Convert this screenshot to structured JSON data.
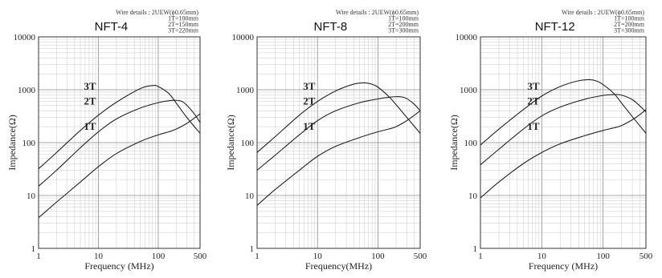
{
  "chart_data": [
    {
      "type": "line",
      "title": "NFT-4",
      "wire_details": [
        "Wire details : 2UEW(ϕ0.65mm)",
        "1T=100mm",
        "2T=150mm",
        "3T=220mm"
      ],
      "xlabel": "Frequency (MHz)",
      "ylabel": "Impedance(Ω)",
      "xscale": "log",
      "yscale": "log",
      "xlim": [
        1,
        500
      ],
      "ylim": [
        1,
        10000
      ],
      "xticks": [
        "1",
        "10",
        "100",
        "500"
      ],
      "yticks": [
        "1",
        "10",
        "100",
        "1000",
        "10000"
      ],
      "grid": true,
      "series": [
        {
          "name": "3T",
          "x": [
            1,
            2,
            5,
            10,
            20,
            50,
            80,
            100,
            150,
            200,
            300,
            500
          ],
          "y": [
            32,
            65,
            170,
            330,
            580,
            1050,
            1200,
            1150,
            850,
            560,
            300,
            150
          ]
        },
        {
          "name": "2T",
          "x": [
            1,
            2,
            5,
            10,
            20,
            50,
            100,
            150,
            200,
            250,
            300,
            400,
            500
          ],
          "y": [
            15,
            30,
            80,
            160,
            280,
            450,
            570,
            620,
            630,
            600,
            510,
            350,
            240
          ]
        },
        {
          "name": "1T",
          "x": [
            1,
            2,
            5,
            10,
            20,
            50,
            100,
            150,
            200,
            300,
            400,
            500
          ],
          "y": [
            3.8,
            7.5,
            18,
            35,
            62,
            105,
            140,
            160,
            180,
            230,
            290,
            350
          ]
        }
      ]
    },
    {
      "type": "line",
      "title": "NFT-8",
      "wire_details": [
        "Wire details : 2UEW(ϕ0.65mm)",
        "1T=100mm",
        "2T=200mm",
        "3T=300mm"
      ],
      "xlabel": "Frequency(MHz)",
      "ylabel": "Impedance(Ω)",
      "xscale": "log",
      "yscale": "log",
      "xlim": [
        1,
        500
      ],
      "ylim": [
        1,
        10000
      ],
      "xticks": [
        "1",
        "10",
        "100",
        "500"
      ],
      "yticks": [
        "1",
        "10",
        "100",
        "1000",
        "10000"
      ],
      "grid": true,
      "series": [
        {
          "name": "3T",
          "x": [
            1,
            2,
            5,
            10,
            20,
            40,
            60,
            80,
            100,
            150,
            200,
            300,
            500
          ],
          "y": [
            65,
            130,
            330,
            600,
            950,
            1280,
            1350,
            1270,
            1120,
            750,
            520,
            300,
            150
          ]
        },
        {
          "name": "2T",
          "x": [
            1,
            2,
            5,
            10,
            20,
            50,
            100,
            150,
            200,
            250,
            300,
            400,
            500
          ],
          "y": [
            30,
            58,
            140,
            260,
            400,
            570,
            670,
            720,
            740,
            730,
            680,
            530,
            400
          ]
        },
        {
          "name": "1T",
          "x": [
            1,
            2,
            5,
            10,
            20,
            50,
            100,
            150,
            200,
            300,
            400,
            500
          ],
          "y": [
            6.5,
            13,
            30,
            55,
            85,
            125,
            160,
            180,
            200,
            260,
            330,
            400
          ]
        }
      ]
    },
    {
      "type": "line",
      "title": "NFT-12",
      "wire_details": [
        "Wire details : 2UEW(ϕ0.65mm)",
        "1T=100mm",
        "2T=200mm",
        "3T=300mm"
      ],
      "xlabel": "Frequency (MHz)",
      "ylabel": "Impedance(Ω)",
      "xscale": "log",
      "yscale": "log",
      "xlim": [
        1,
        500
      ],
      "ylim": [
        1,
        10000
      ],
      "xticks": [
        "1",
        "10",
        "100",
        "500"
      ],
      "yticks": [
        "1",
        "10",
        "100",
        "1000",
        "10000"
      ],
      "grid": true,
      "series": [
        {
          "name": "3T",
          "x": [
            1,
            2,
            5,
            10,
            20,
            40,
            60,
            80,
            100,
            150,
            200,
            300,
            500
          ],
          "y": [
            90,
            180,
            420,
            760,
            1150,
            1480,
            1550,
            1450,
            1250,
            850,
            560,
            310,
            150
          ]
        },
        {
          "name": "2T",
          "x": [
            1,
            2,
            5,
            10,
            20,
            50,
            100,
            150,
            200,
            300,
            400,
            500
          ],
          "y": [
            38,
            75,
            180,
            320,
            470,
            660,
            780,
            810,
            790,
            650,
            490,
            380
          ]
        },
        {
          "name": "1T",
          "x": [
            1,
            2,
            5,
            10,
            20,
            50,
            100,
            150,
            200,
            300,
            400,
            500
          ],
          "y": [
            9,
            18,
            40,
            65,
            95,
            135,
            170,
            190,
            210,
            270,
            340,
            420
          ]
        }
      ]
    }
  ]
}
